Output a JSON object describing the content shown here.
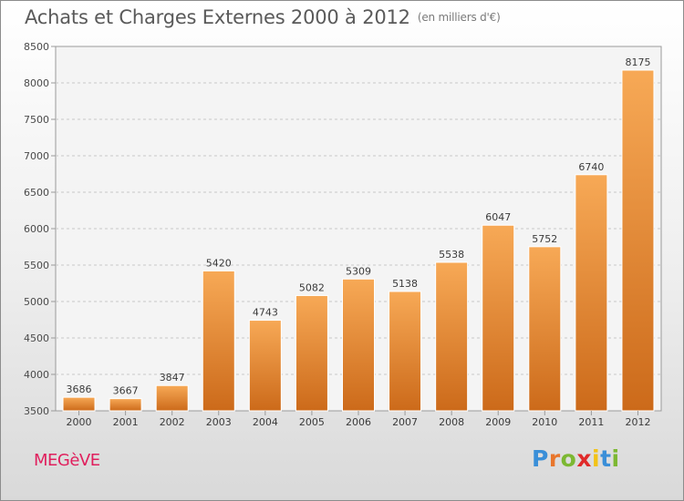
{
  "page": {
    "title": "Achats et Charges Externes 2000 à 2012",
    "subtitle": "(en milliers d'€)",
    "city": "MEGèVE",
    "logo_letters": [
      {
        "ch": "P",
        "color": "#3a8fd8"
      },
      {
        "ch": "r",
        "color": "#e8762c"
      },
      {
        "ch": "o",
        "color": "#7cb832"
      },
      {
        "ch": "x",
        "color": "#e02a2a"
      },
      {
        "ch": "i",
        "color": "#f2c318"
      },
      {
        "ch": "t",
        "color": "#3a8fd8"
      },
      {
        "ch": "i",
        "color": "#7cb832"
      }
    ]
  },
  "chart_data": {
    "type": "bar",
    "title": "Achats et Charges Externes 2000 à 2012",
    "subtitle": "(en milliers d'€)",
    "xlabel": "",
    "ylabel": "",
    "categories": [
      "2000",
      "2001",
      "2002",
      "2003",
      "2004",
      "2005",
      "2006",
      "2007",
      "2008",
      "2009",
      "2010",
      "2011",
      "2012"
    ],
    "values": [
      3686,
      3667,
      3847,
      5420,
      4743,
      5082,
      5309,
      5138,
      5538,
      6047,
      5752,
      6740,
      8175
    ],
    "ylim": [
      3500,
      8500
    ],
    "yticks": [
      3500,
      4000,
      4500,
      5000,
      5500,
      6000,
      6500,
      7000,
      7500,
      8000,
      8500
    ],
    "grid": true,
    "bar_color_light": "#f7a956",
    "bar_color_dark": "#cc6a1a"
  }
}
